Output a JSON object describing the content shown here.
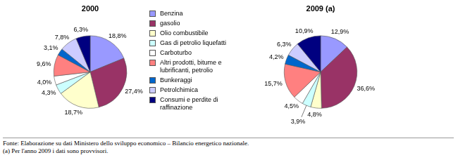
{
  "chart_data": [
    {
      "type": "pie",
      "title": "2000",
      "categories": [
        "Benzina",
        "gasolio",
        "Olio combustibile",
        "Gas di petrolio liquefatti",
        "Carboturbo",
        "Altri prodotti, bitume e lubrificanti, petrolio",
        "Bunkeraggi",
        "Petrolchimica",
        "Consumi e perdite di raffinazione"
      ],
      "values": [
        18.8,
        27.4,
        18.7,
        4.3,
        4.0,
        9.6,
        3.1,
        7.8,
        6.3
      ],
      "value_labels": [
        "18,8%",
        "27,4%",
        "18,7%",
        "4,3%",
        "4,0%",
        "9,6%",
        "3,1%",
        "7,8%",
        "6,3%"
      ],
      "colors": [
        "#9999ff",
        "#993366",
        "#ffffcc",
        "#ccffff",
        "#ffffff",
        "#ff8080",
        "#0066cc",
        "#ccccff",
        "#000080"
      ],
      "data_labels": true,
      "legend": "right"
    },
    {
      "type": "pie",
      "title": "2009 (a)",
      "categories": [
        "Benzina",
        "gasolio",
        "Olio combustibile",
        "Gas di petrolio liquefatti",
        "Carboturbo",
        "Altri prodotti, bitume e lubrificanti, petrolio",
        "Bunkeraggi",
        "Petrolchimica",
        "Consumi e perdite di raffinazione"
      ],
      "values": [
        12.9,
        36.6,
        4.8,
        3.9,
        4.5,
        15.7,
        4.2,
        6.3,
        10.9
      ],
      "value_labels": [
        "12,9%",
        "36,6%",
        "4,8%",
        "3,9%",
        "4,5%",
        "15,7%",
        "4,2%",
        "6,3%",
        "10,9%"
      ],
      "colors": [
        "#9999ff",
        "#993366",
        "#ffffcc",
        "#ccffff",
        "#ffffff",
        "#ff8080",
        "#0066cc",
        "#ccccff",
        "#000080"
      ],
      "data_labels": true
    }
  ],
  "notes": [
    "Fonte: Elaborazione su dati Ministero dello sviluppo economico – Bilancio energetico nazionale.",
    "(a) Per l'anno 2009 i dati sono provvisori."
  ]
}
